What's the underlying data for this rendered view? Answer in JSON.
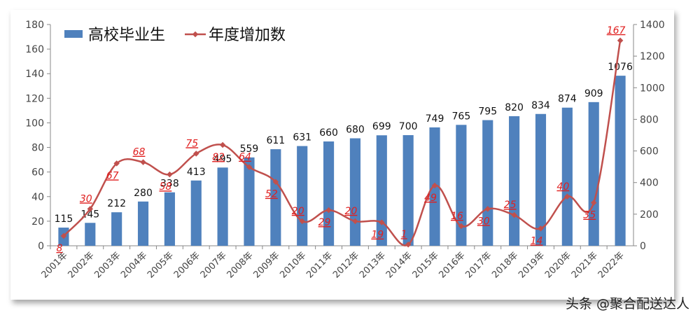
{
  "chart_data": {
    "type": "bar-line",
    "categories": [
      "2001年",
      "2002年",
      "2003年",
      "2004年",
      "2005年",
      "2006年",
      "2007年",
      "2008年",
      "2009年",
      "2010年",
      "2011年",
      "2012年",
      "2013年",
      "2014年",
      "2015年",
      "2016年",
      "2017年",
      "2018年",
      "2019年",
      "2020年",
      "2021年",
      "2022年"
    ],
    "series": [
      {
        "name": "高校毕业生",
        "type": "bar",
        "color": "#4f81bd",
        "axis": "y2",
        "values": [
          115,
          145,
          212,
          280,
          338,
          413,
          495,
          559,
          611,
          631,
          660,
          680,
          699,
          700,
          749,
          765,
          795,
          820,
          834,
          874,
          909,
          1076
        ]
      },
      {
        "name": "年度增加数",
        "type": "line",
        "color": "#c0504d",
        "values": [
          8,
          30,
          67,
          68,
          58,
          75,
          82,
          64,
          52,
          20,
          29,
          20,
          19,
          1,
          49,
          16,
          30,
          25,
          14,
          40,
          35,
          167
        ]
      }
    ],
    "ylim": [
      0,
      180
    ],
    "yticks": [
      0,
      20,
      40,
      60,
      80,
      100,
      120,
      140,
      160,
      180
    ],
    "y2lim": [
      0,
      1400
    ],
    "y2ticks": [
      0,
      200,
      400,
      600,
      800,
      1000,
      1200,
      1400
    ],
    "legend": "top-left",
    "watermark": "头条 @聚合配送达人"
  }
}
